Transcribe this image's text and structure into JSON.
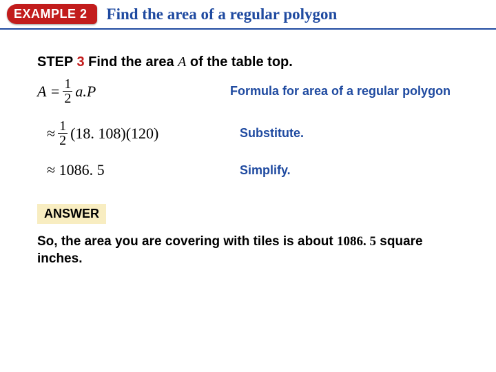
{
  "colors": {
    "rule": "#1f4aa0",
    "badge_bg": "#c21c1c",
    "title": "#1f4aa0",
    "step_num": "#c21c1c",
    "explain": "#1f4aa0",
    "answer_bg": "#f8edc1"
  },
  "header": {
    "badge": "EXAMPLE 2",
    "title": "Find the area of a regular polygon"
  },
  "step": {
    "word": "STEP",
    "number": "3",
    "text_pre": "Find the area ",
    "var": "A",
    "text_post": " of the table top."
  },
  "rows": [
    {
      "pre": "A = ",
      "frac_num": "1",
      "frac_den": "2",
      "post_math": " a.P",
      "post_plain": "",
      "explain": "Formula for area of a regular polygon",
      "italic_pre": true,
      "italic_post": true
    },
    {
      "pre": "≈ ",
      "frac_num": "1",
      "frac_den": "2",
      "post_math": "",
      "post_plain": " (18. 108)(120)",
      "explain": "Substitute.",
      "italic_pre": false,
      "italic_post": false
    },
    {
      "pre": "≈ 1086. 5",
      "frac_num": "",
      "frac_den": "",
      "post_math": "",
      "post_plain": "",
      "explain": "Simplify.",
      "italic_pre": false,
      "italic_post": false
    }
  ],
  "answer": {
    "label": "ANSWER",
    "text_a": "So, the area you are covering with tiles is about ",
    "value": "1086. 5",
    "text_b": " square inches."
  }
}
